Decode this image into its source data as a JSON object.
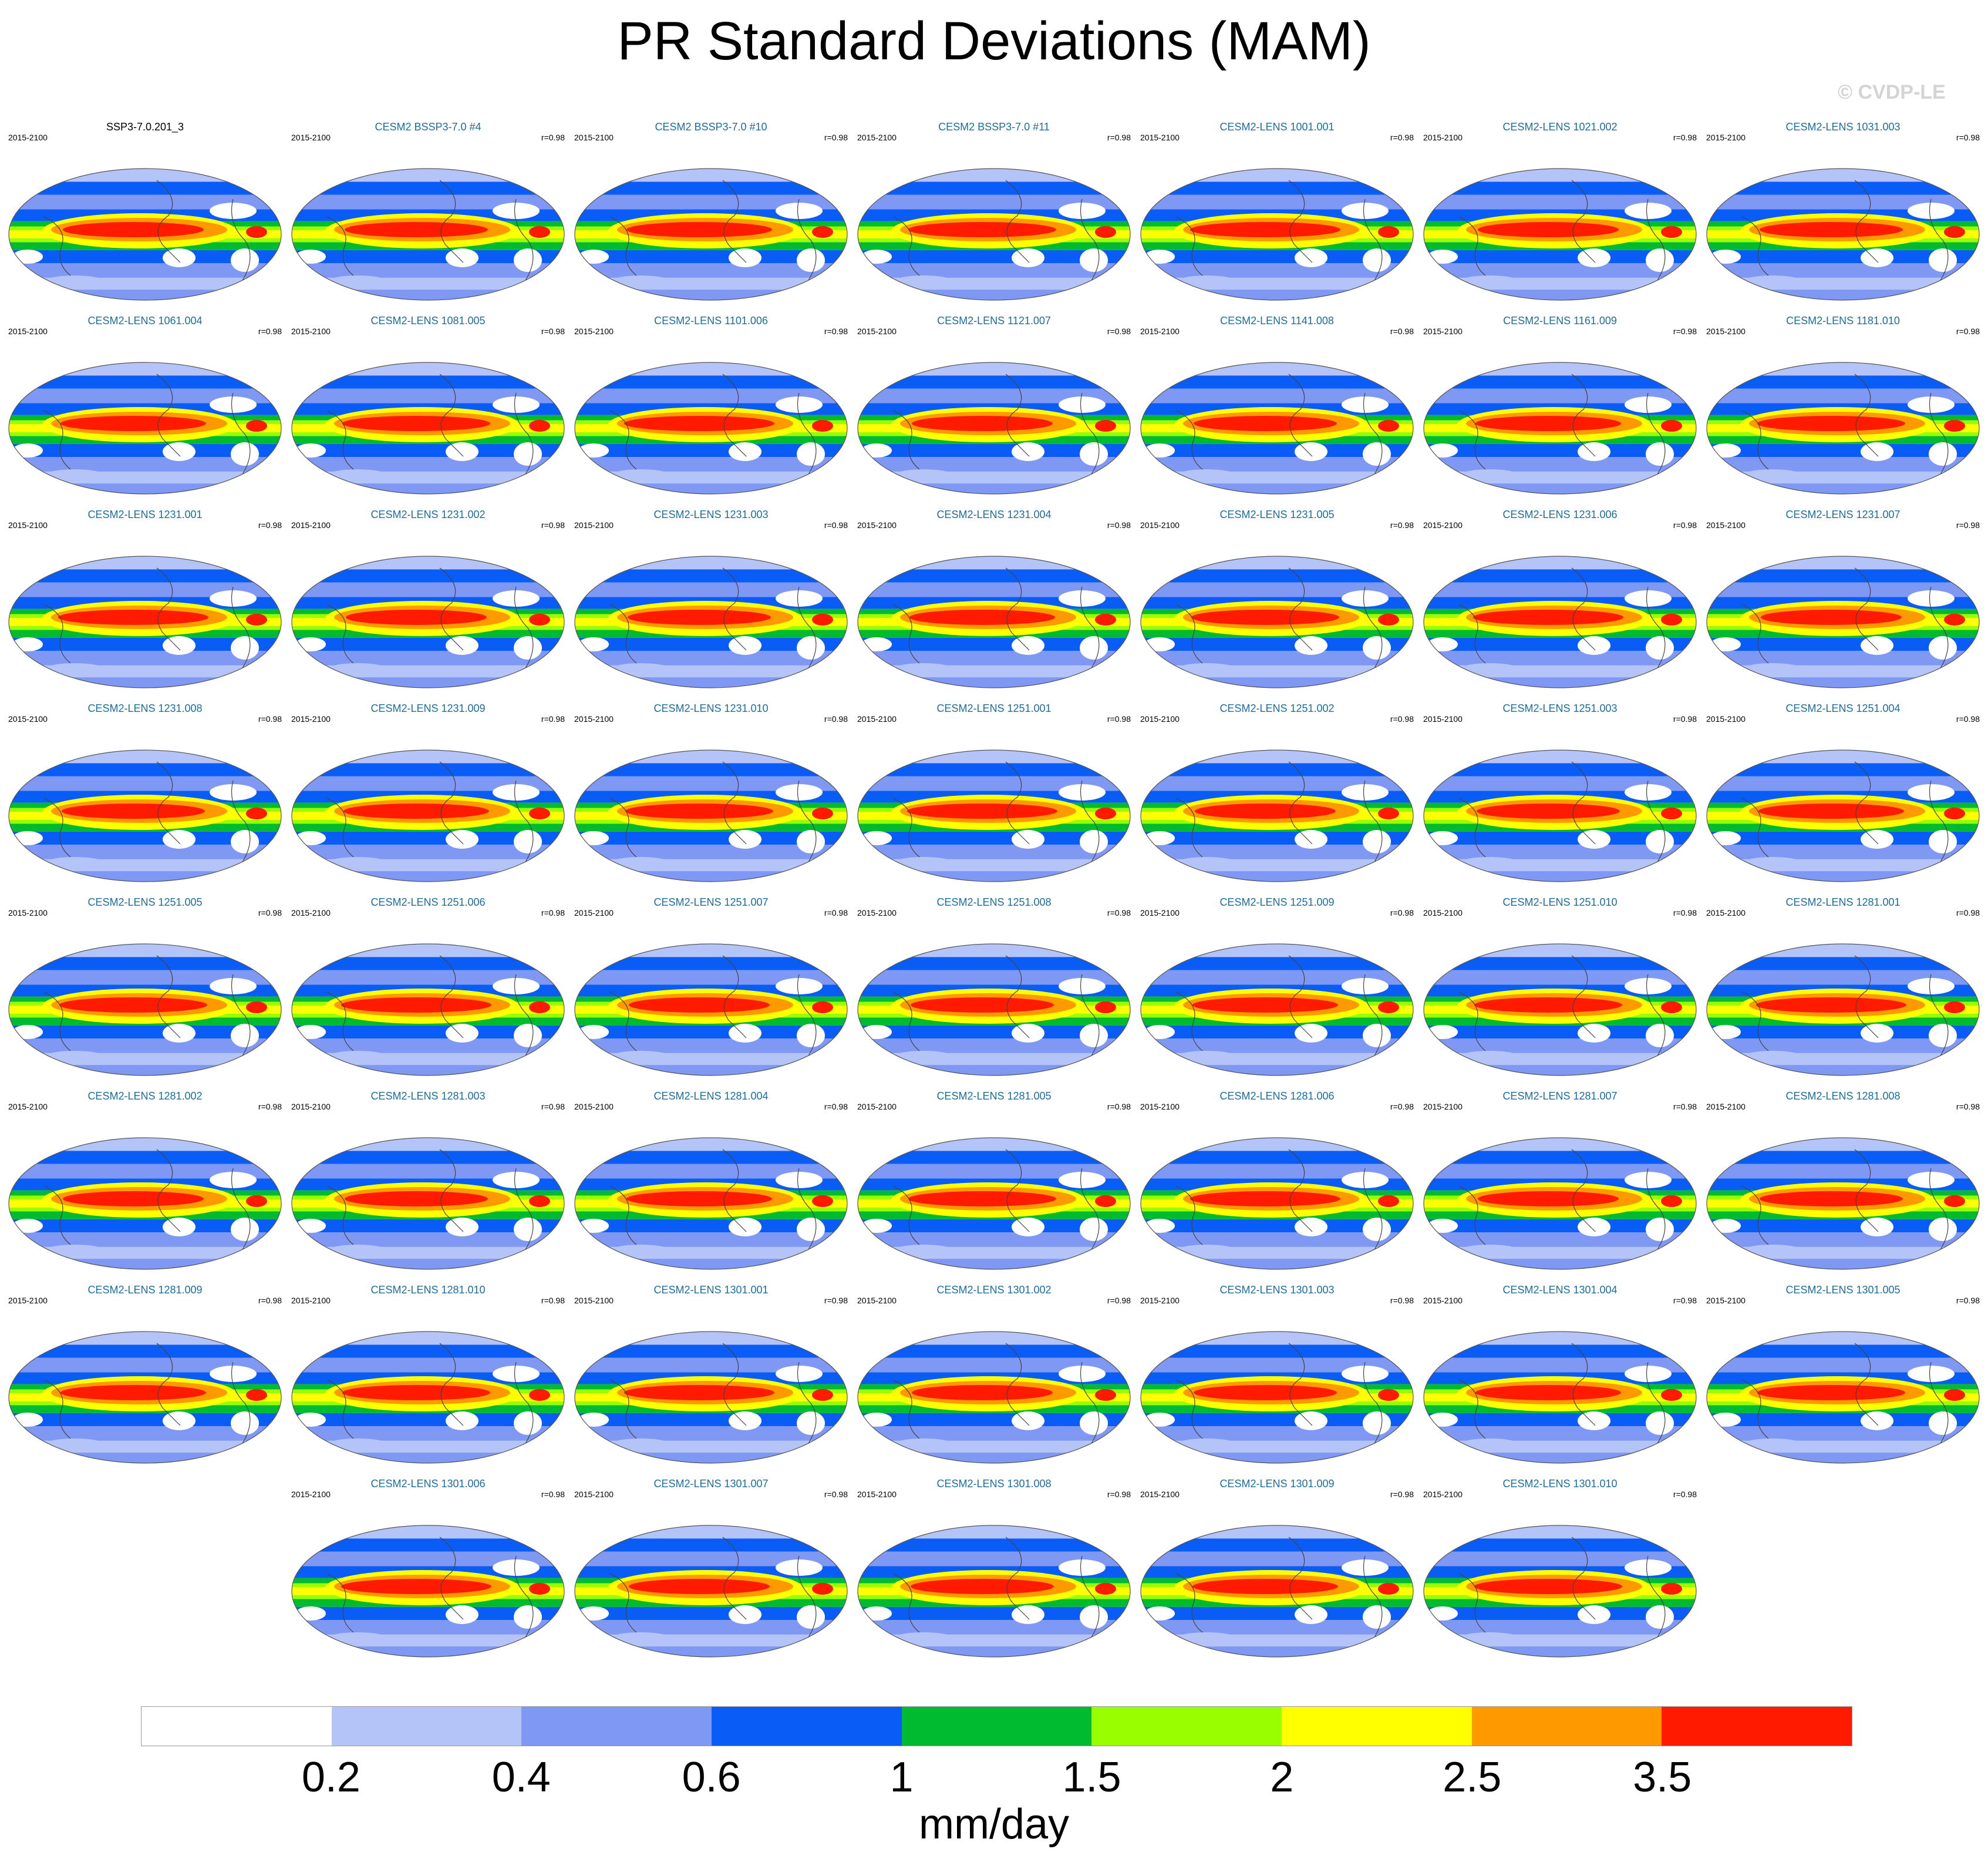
{
  "title": "PR Standard Deviations (MAM)",
  "watermark": "© CVDP-LE",
  "panels": [
    {
      "title": "SSP3-7.0.201_3",
      "period": "2015-2100",
      "corr": ""
    },
    {
      "title": "CESM2 BSSP3-7.0 #4",
      "period": "2015-2100",
      "corr": "r=0.98"
    },
    {
      "title": "CESM2 BSSP3-7.0 #10",
      "period": "2015-2100",
      "corr": "r=0.98"
    },
    {
      "title": "CESM2 BSSP3-7.0 #11",
      "period": "2015-2100",
      "corr": "r=0.98"
    },
    {
      "title": "CESM2-LENS 1001.001",
      "period": "2015-2100",
      "corr": "r=0.98"
    },
    {
      "title": "CESM2-LENS 1021.002",
      "period": "2015-2100",
      "corr": "r=0.98"
    },
    {
      "title": "CESM2-LENS 1031.003",
      "period": "2015-2100",
      "corr": "r=0.98"
    },
    {
      "title": "CESM2-LENS 1061.004",
      "period": "2015-2100",
      "corr": "r=0.98"
    },
    {
      "title": "CESM2-LENS 1081.005",
      "period": "2015-2100",
      "corr": "r=0.98"
    },
    {
      "title": "CESM2-LENS 1101.006",
      "period": "2015-2100",
      "corr": "r=0.98"
    },
    {
      "title": "CESM2-LENS 1121.007",
      "period": "2015-2100",
      "corr": "r=0.98"
    },
    {
      "title": "CESM2-LENS 1141.008",
      "period": "2015-2100",
      "corr": "r=0.98"
    },
    {
      "title": "CESM2-LENS 1161.009",
      "period": "2015-2100",
      "corr": "r=0.98"
    },
    {
      "title": "CESM2-LENS 1181.010",
      "period": "2015-2100",
      "corr": "r=0.98"
    },
    {
      "title": "CESM2-LENS 1231.001",
      "period": "2015-2100",
      "corr": "r=0.98"
    },
    {
      "title": "CESM2-LENS 1231.002",
      "period": "2015-2100",
      "corr": "r=0.98"
    },
    {
      "title": "CESM2-LENS 1231.003",
      "period": "2015-2100",
      "corr": "r=0.98"
    },
    {
      "title": "CESM2-LENS 1231.004",
      "period": "2015-2100",
      "corr": "r=0.98"
    },
    {
      "title": "CESM2-LENS 1231.005",
      "period": "2015-2100",
      "corr": "r=0.98"
    },
    {
      "title": "CESM2-LENS 1231.006",
      "period": "2015-2100",
      "corr": "r=0.98"
    },
    {
      "title": "CESM2-LENS 1231.007",
      "period": "2015-2100",
      "corr": "r=0.98"
    },
    {
      "title": "CESM2-LENS 1231.008",
      "period": "2015-2100",
      "corr": "r=0.98"
    },
    {
      "title": "CESM2-LENS 1231.009",
      "period": "2015-2100",
      "corr": "r=0.98"
    },
    {
      "title": "CESM2-LENS 1231.010",
      "period": "2015-2100",
      "corr": "r=0.98"
    },
    {
      "title": "CESM2-LENS 1251.001",
      "period": "2015-2100",
      "corr": "r=0.98"
    },
    {
      "title": "CESM2-LENS 1251.002",
      "period": "2015-2100",
      "corr": "r=0.98"
    },
    {
      "title": "CESM2-LENS 1251.003",
      "period": "2015-2100",
      "corr": "r=0.98"
    },
    {
      "title": "CESM2-LENS 1251.004",
      "period": "2015-2100",
      "corr": "r=0.98"
    },
    {
      "title": "CESM2-LENS 1251.005",
      "period": "2015-2100",
      "corr": "r=0.98"
    },
    {
      "title": "CESM2-LENS 1251.006",
      "period": "2015-2100",
      "corr": "r=0.98"
    },
    {
      "title": "CESM2-LENS 1251.007",
      "period": "2015-2100",
      "corr": "r=0.98"
    },
    {
      "title": "CESM2-LENS 1251.008",
      "period": "2015-2100",
      "corr": "r=0.98"
    },
    {
      "title": "CESM2-LENS 1251.009",
      "period": "2015-2100",
      "corr": "r=0.98"
    },
    {
      "title": "CESM2-LENS 1251.010",
      "period": "2015-2100",
      "corr": "r=0.98"
    },
    {
      "title": "CESM2-LENS 1281.001",
      "period": "2015-2100",
      "corr": "r=0.98"
    },
    {
      "title": "CESM2-LENS 1281.002",
      "period": "2015-2100",
      "corr": "r=0.98"
    },
    {
      "title": "CESM2-LENS 1281.003",
      "period": "2015-2100",
      "corr": "r=0.98"
    },
    {
      "title": "CESM2-LENS 1281.004",
      "period": "2015-2100",
      "corr": "r=0.98"
    },
    {
      "title": "CESM2-LENS 1281.005",
      "period": "2015-2100",
      "corr": "r=0.98"
    },
    {
      "title": "CESM2-LENS 1281.006",
      "period": "2015-2100",
      "corr": "r=0.98"
    },
    {
      "title": "CESM2-LENS 1281.007",
      "period": "2015-2100",
      "corr": "r=0.98"
    },
    {
      "title": "CESM2-LENS 1281.008",
      "period": "2015-2100",
      "corr": "r=0.98"
    },
    {
      "title": "CESM2-LENS 1281.009",
      "period": "2015-2100",
      "corr": "r=0.98"
    },
    {
      "title": "CESM2-LENS 1281.010",
      "period": "2015-2100",
      "corr": "r=0.98"
    },
    {
      "title": "CESM2-LENS 1301.001",
      "period": "2015-2100",
      "corr": "r=0.98"
    },
    {
      "title": "CESM2-LENS 1301.002",
      "period": "2015-2100",
      "corr": "r=0.98"
    },
    {
      "title": "CESM2-LENS 1301.003",
      "period": "2015-2100",
      "corr": "r=0.98"
    },
    {
      "title": "CESM2-LENS 1301.004",
      "period": "2015-2100",
      "corr": "r=0.98"
    },
    {
      "title": "CESM2-LENS 1301.005",
      "period": "2015-2100",
      "corr": "r=0.98"
    },
    {
      "title": "CESM2-LENS 1301.006",
      "period": "2015-2100",
      "corr": "r=0.98"
    },
    {
      "title": "CESM2-LENS 1301.007",
      "period": "2015-2100",
      "corr": "r=0.98"
    },
    {
      "title": "CESM2-LENS 1301.008",
      "period": "2015-2100",
      "corr": "r=0.98"
    },
    {
      "title": "CESM2-LENS 1301.009",
      "period": "2015-2100",
      "corr": "r=0.98"
    },
    {
      "title": "CESM2-LENS 1301.010",
      "period": "2015-2100",
      "corr": "r=0.98"
    }
  ],
  "colorbar": {
    "colors": [
      "#ffffff",
      "#b4c4f8",
      "#7f98f4",
      "#0a5cf6",
      "#00bb30",
      "#99ff00",
      "#ffff00",
      "#ff9900",
      "#ff1a00"
    ],
    "tick_labels": [
      "0.2",
      "0.4",
      "0.6",
      "1",
      "1.5",
      "2",
      "2.5",
      "3.5"
    ],
    "units": "mm/day"
  }
}
